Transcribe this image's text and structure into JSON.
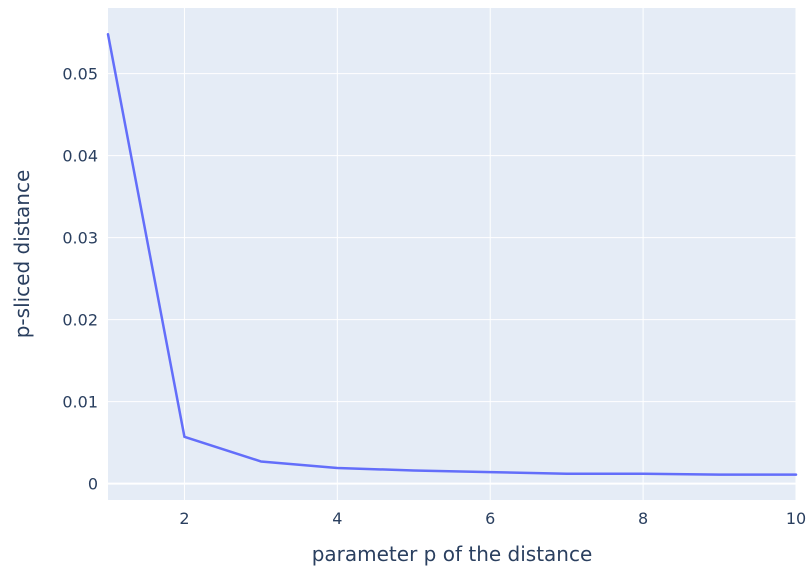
{
  "chart_data": {
    "type": "line",
    "title": "",
    "xlabel": "parameter p of the distance",
    "ylabel": "p-sliced distance",
    "xlim": [
      1,
      10
    ],
    "ylim": [
      -0.002,
      0.058
    ],
    "grid": true,
    "legend": "none",
    "x_ticks": [
      2,
      4,
      6,
      8,
      10
    ],
    "x_tick_labels": [
      "2",
      "4",
      "6",
      "8",
      "10"
    ],
    "y_ticks": [
      0,
      0.01,
      0.02,
      0.03,
      0.04,
      0.05
    ],
    "y_tick_labels": [
      "0",
      "0.01",
      "0.02",
      "0.03",
      "0.04",
      "0.05"
    ],
    "series": [
      {
        "x": [
          1,
          2,
          3,
          4,
          5,
          6,
          7,
          8,
          9,
          10
        ],
        "values": [
          0.0548,
          0.0057,
          0.0027,
          0.0019,
          0.0016,
          0.0014,
          0.0012,
          0.0012,
          0.0011,
          0.0011
        ],
        "color": "#636efa"
      }
    ]
  },
  "colors": {
    "plot_background": "#e5ecf6",
    "grid": "#ffffff",
    "line": "#636efa",
    "text": "#2a3f5f"
  }
}
